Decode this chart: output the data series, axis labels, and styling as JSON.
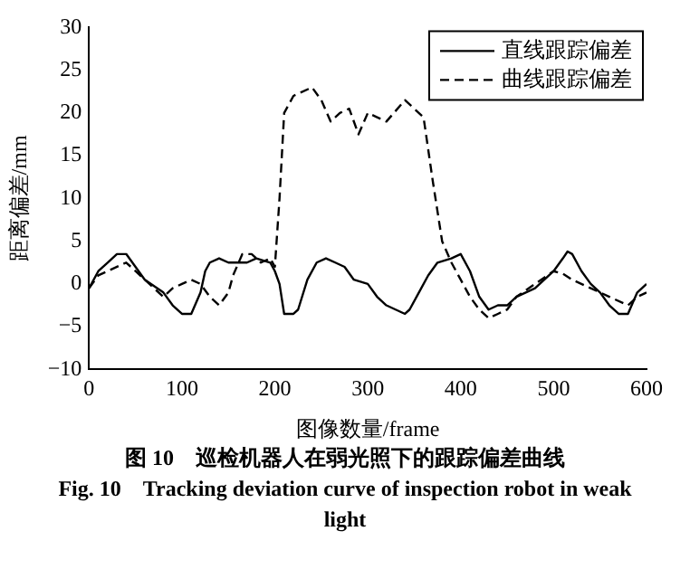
{
  "chart_data": {
    "type": "line",
    "xlabel": "图像数量/frame",
    "ylabel": "距离偏差/mm",
    "xlim": [
      0,
      600
    ],
    "xticks": [
      0,
      100,
      200,
      300,
      400,
      500,
      600
    ],
    "ylim": [
      -10,
      30
    ],
    "yticks": [
      -10,
      -5,
      0,
      5,
      10,
      15,
      20,
      25,
      30
    ],
    "grid": false,
    "legend": "top right",
    "marker": "none",
    "annotations": [
      "图 10　巡检机器人在弱光照下的跟踪偏差曲线",
      "Fig. 10　Tracking deviation curve of inspection robot in weak light"
    ],
    "series": [
      {
        "name": "直线跟踪偏差",
        "color": "#000000",
        "line_style": "solid",
        "x": [
          0,
          10,
          20,
          30,
          40,
          50,
          60,
          80,
          90,
          100,
          110,
          120,
          125,
          130,
          140,
          150,
          160,
          170,
          180,
          195,
          200,
          205,
          210,
          220,
          225,
          235,
          245,
          255,
          265,
          275,
          285,
          300,
          310,
          320,
          330,
          340,
          345,
          355,
          365,
          375,
          390,
          400,
          410,
          420,
          430,
          440,
          450,
          460,
          470,
          480,
          490,
          500,
          510,
          515,
          520,
          530,
          540,
          550,
          560,
          570,
          580,
          590,
          600
        ],
        "values": [
          -0.5,
          1.5,
          2.5,
          3.5,
          3.5,
          2,
          0.5,
          -1,
          -2.5,
          -3.5,
          -3.5,
          -1,
          1.5,
          2.5,
          3,
          2.5,
          2.5,
          2.5,
          3,
          2.5,
          1.5,
          0,
          -3.5,
          -3.5,
          -3,
          0.5,
          2.5,
          3,
          2.5,
          2,
          0.5,
          0,
          -1.5,
          -2.5,
          -3,
          -3.5,
          -3,
          -1,
          1,
          2.5,
          3,
          3.5,
          1.5,
          -1.5,
          -3,
          -2.5,
          -2.5,
          -1.5,
          -1,
          -0.5,
          0.5,
          1.5,
          3,
          3.8,
          3.5,
          1.5,
          0,
          -1,
          -2.5,
          -3.5,
          -3.5,
          -1,
          0
        ]
      },
      {
        "name": "曲线跟踪偏差",
        "color": "#000000",
        "line_style": "dashed",
        "x": [
          0,
          10,
          20,
          40,
          50,
          60,
          80,
          90,
          100,
          110,
          120,
          130,
          140,
          150,
          155,
          165,
          175,
          185,
          195,
          200,
          205,
          210,
          220,
          240,
          250,
          260,
          270,
          280,
          290,
          300,
          310,
          320,
          340,
          350,
          360,
          370,
          380,
          390,
          400,
          410,
          420,
          430,
          440,
          450,
          460,
          480,
          500,
          510,
          520,
          540,
          560,
          580,
          590,
          600
        ],
        "values": [
          -0.5,
          1,
          1.5,
          2.5,
          1.5,
          0.5,
          -1.5,
          -0.5,
          0,
          0.5,
          0,
          -1.5,
          -2.5,
          -1,
          1,
          3.5,
          3.5,
          2.5,
          3,
          2,
          10,
          20,
          22,
          23,
          21.5,
          19,
          20,
          20.5,
          17.5,
          20,
          19.5,
          19,
          21.5,
          20.5,
          19.5,
          12,
          5,
          2.5,
          0.5,
          -1.5,
          -3,
          -4,
          -3.5,
          -3,
          -1.5,
          0,
          1.5,
          1.2,
          0.5,
          -0.5,
          -1.5,
          -2.5,
          -1.5,
          -1
        ]
      }
    ]
  }
}
